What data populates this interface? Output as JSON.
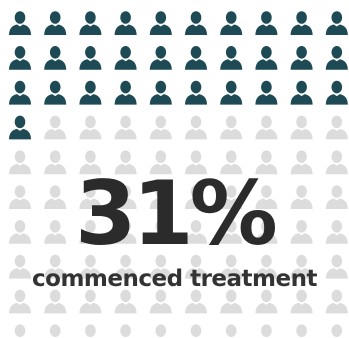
{
  "chart_data": {
    "type": "pictogram",
    "total_icons": 100,
    "highlighted_icons": 31,
    "highlight_color": "#1d4a55",
    "muted_color": "#dcdcdc",
    "icon": "person-icon",
    "value_text": "31%",
    "label": "commenced treatment"
  }
}
